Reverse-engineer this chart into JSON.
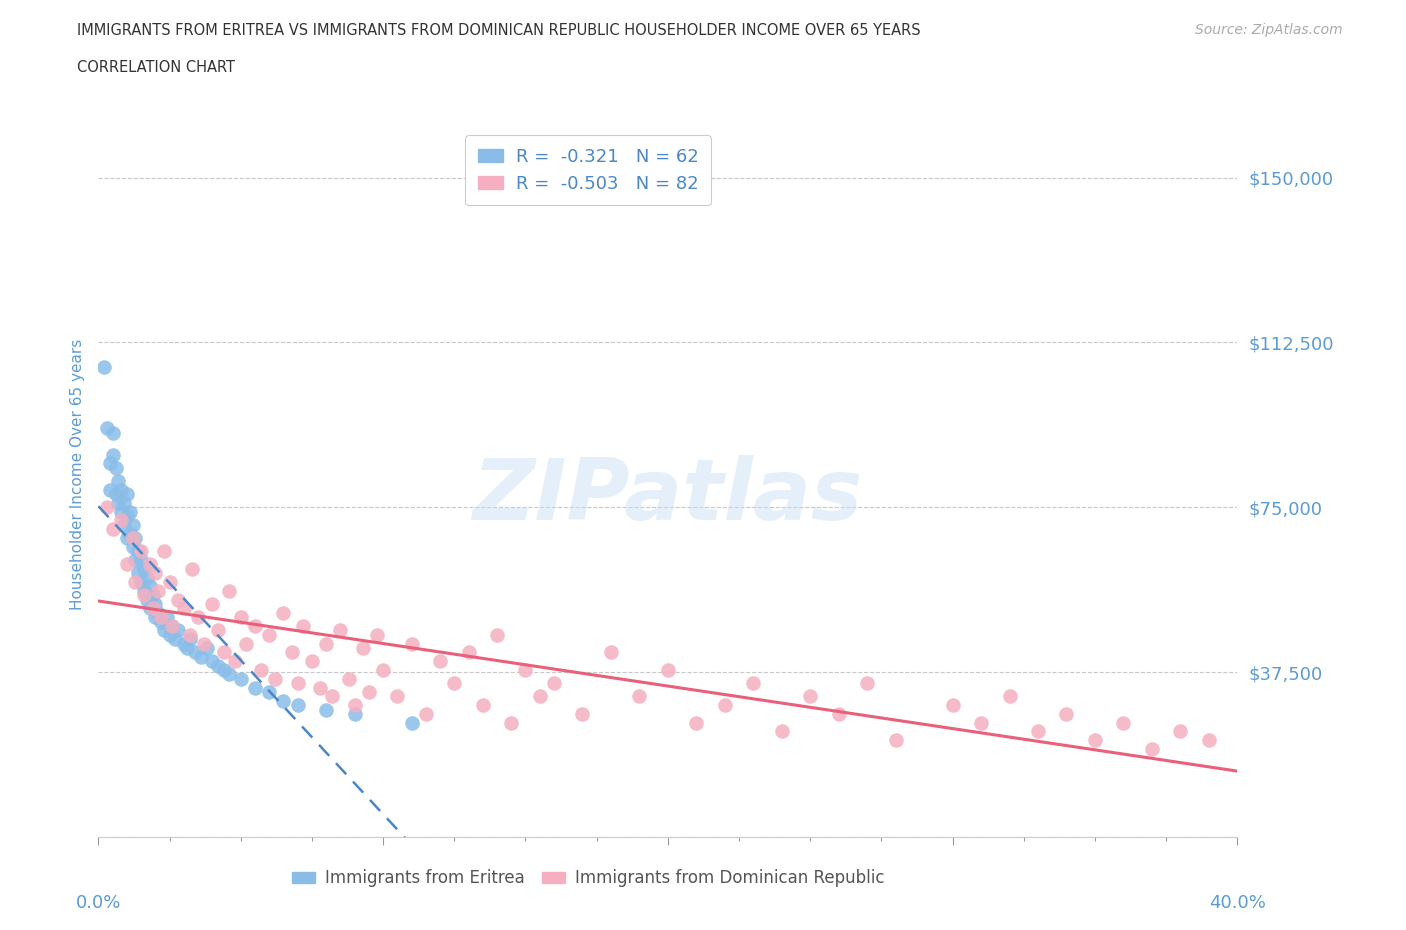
{
  "title_line1": "IMMIGRANTS FROM ERITREA VS IMMIGRANTS FROM DOMINICAN REPUBLIC HOUSEHOLDER INCOME OVER 65 YEARS",
  "title_line2": "CORRELATION CHART",
  "source_text": "Source: ZipAtlas.com",
  "watermark_text": "ZIPatlas",
  "ylabel": "Householder Income Over 65 years",
  "xmin": 0.0,
  "xmax": 0.4,
  "ymin": 0,
  "ymax": 165000,
  "yticks": [
    0,
    37500,
    75000,
    112500,
    150000
  ],
  "ytick_labels": [
    "",
    "$37,500",
    "$75,000",
    "$112,500",
    "$150,000"
  ],
  "xtick_major": [
    0.0,
    0.1,
    0.2,
    0.3,
    0.4
  ],
  "xtick_minor": [
    0.025,
    0.05,
    0.075,
    0.125,
    0.15,
    0.175,
    0.225,
    0.25,
    0.275,
    0.325,
    0.35,
    0.375
  ],
  "xtick_edge_labels": [
    "0.0%",
    "40.0%"
  ],
  "legend_r1": "R =  -0.321   N = 62",
  "legend_r2": "R =  -0.503   N = 82",
  "color_eritrea": "#89bde8",
  "color_dominican": "#f5afc0",
  "line_color_eritrea": "#4a86c8",
  "line_color_dominican": "#e8607a",
  "title_color": "#333333",
  "axis_label_color": "#5b9bd5",
  "tick_label_color": "#5b9bd5",
  "background_color": "#ffffff",
  "grid_color": "#c8c8c8",
  "source_color": "#aaaaaa",
  "legend_label_color": "#4a86c8",
  "bottom_label_color": "#555555",
  "eritrea_x": [
    0.002,
    0.003,
    0.004,
    0.004,
    0.005,
    0.005,
    0.006,
    0.006,
    0.007,
    0.007,
    0.008,
    0.008,
    0.009,
    0.009,
    0.01,
    0.01,
    0.01,
    0.011,
    0.011,
    0.012,
    0.012,
    0.013,
    0.013,
    0.014,
    0.014,
    0.015,
    0.015,
    0.016,
    0.016,
    0.017,
    0.017,
    0.018,
    0.018,
    0.019,
    0.02,
    0.02,
    0.021,
    0.022,
    0.023,
    0.024,
    0.025,
    0.026,
    0.027,
    0.028,
    0.03,
    0.031,
    0.032,
    0.034,
    0.036,
    0.038,
    0.04,
    0.042,
    0.044,
    0.046,
    0.05,
    0.055,
    0.06,
    0.065,
    0.07,
    0.08,
    0.09,
    0.11
  ],
  "eritrea_y": [
    107000,
    93000,
    85000,
    79000,
    92000,
    87000,
    84000,
    78000,
    81000,
    76000,
    79000,
    74000,
    76000,
    71000,
    78000,
    73000,
    68000,
    74000,
    69000,
    71000,
    66000,
    68000,
    63000,
    65000,
    60000,
    63000,
    58000,
    61000,
    56000,
    59000,
    54000,
    57000,
    52000,
    55000,
    53000,
    50000,
    51000,
    49000,
    47000,
    50000,
    46000,
    48000,
    45000,
    47000,
    44000,
    43000,
    45000,
    42000,
    41000,
    43000,
    40000,
    39000,
    38000,
    37000,
    36000,
    34000,
    33000,
    31000,
    30000,
    29000,
    28000,
    26000
  ],
  "dominican_x": [
    0.003,
    0.005,
    0.008,
    0.01,
    0.012,
    0.013,
    0.015,
    0.016,
    0.018,
    0.019,
    0.02,
    0.021,
    0.022,
    0.023,
    0.025,
    0.026,
    0.028,
    0.03,
    0.032,
    0.033,
    0.035,
    0.037,
    0.04,
    0.042,
    0.044,
    0.046,
    0.048,
    0.05,
    0.052,
    0.055,
    0.057,
    0.06,
    0.062,
    0.065,
    0.068,
    0.07,
    0.072,
    0.075,
    0.078,
    0.08,
    0.082,
    0.085,
    0.088,
    0.09,
    0.093,
    0.095,
    0.098,
    0.1,
    0.105,
    0.11,
    0.115,
    0.12,
    0.125,
    0.13,
    0.135,
    0.14,
    0.145,
    0.15,
    0.155,
    0.16,
    0.17,
    0.18,
    0.19,
    0.2,
    0.21,
    0.22,
    0.23,
    0.24,
    0.25,
    0.26,
    0.27,
    0.28,
    0.3,
    0.31,
    0.32,
    0.33,
    0.34,
    0.35,
    0.36,
    0.37,
    0.38,
    0.39
  ],
  "dominican_y": [
    75000,
    70000,
    72000,
    62000,
    68000,
    58000,
    65000,
    55000,
    62000,
    52000,
    60000,
    56000,
    50000,
    65000,
    58000,
    48000,
    54000,
    52000,
    46000,
    61000,
    50000,
    44000,
    53000,
    47000,
    42000,
    56000,
    40000,
    50000,
    44000,
    48000,
    38000,
    46000,
    36000,
    51000,
    42000,
    35000,
    48000,
    40000,
    34000,
    44000,
    32000,
    47000,
    36000,
    30000,
    43000,
    33000,
    46000,
    38000,
    32000,
    44000,
    28000,
    40000,
    35000,
    42000,
    30000,
    46000,
    26000,
    38000,
    32000,
    35000,
    28000,
    42000,
    32000,
    38000,
    26000,
    30000,
    35000,
    24000,
    32000,
    28000,
    35000,
    22000,
    30000,
    26000,
    32000,
    24000,
    28000,
    22000,
    26000,
    20000,
    24000,
    22000
  ]
}
